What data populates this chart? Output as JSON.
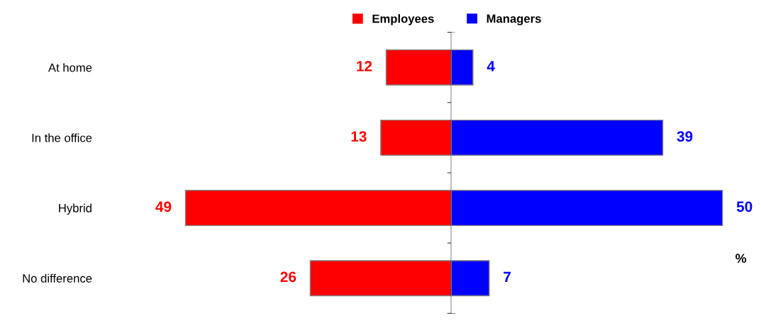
{
  "chart_data": [
    {
      "type": "bar",
      "orientation": "horizontal",
      "categories": [
        "At home",
        "In the office",
        "Hybrid",
        "No difference"
      ],
      "series": [
        {
          "name": "Employees",
          "color": "#ff0000",
          "values": [
            12,
            13,
            49,
            26
          ]
        }
      ],
      "data_labels": true,
      "legend": "top right",
      "tick_labels": "y"
    },
    {
      "type": "bar",
      "orientation": "horizontal",
      "categories": [
        null,
        null,
        null,
        null
      ],
      "series": [
        {
          "name": "Managers",
          "color": "#0000ff",
          "values": [
            4,
            39,
            50,
            7
          ]
        }
      ],
      "data_labels": true,
      "legend": "top left",
      "tick_labels": false,
      "annotations": [
        "%"
      ]
    }
  ]
}
